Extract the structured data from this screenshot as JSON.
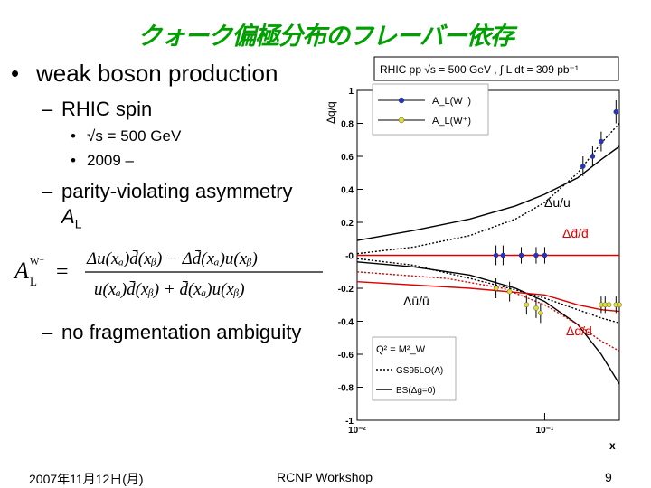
{
  "slide": {
    "title": "クォーク偏極分布のフレーバー依存",
    "bullet_main": "weak boson production",
    "sub1": "RHIC spin",
    "sub1_items": [
      "√s = 500 GeV",
      "2009 –"
    ],
    "sub2_line1": "parity-violating asymmetry",
    "sub2_line2": "A",
    "sub2_line2_sub": "L",
    "sub3": "no fragmentation ambiguity",
    "bullet_symbol": "•",
    "dash_symbol": "–"
  },
  "formula": {
    "lhs_A": "A",
    "lhs_sub": "L",
    "lhs_sup": "W⁺",
    "equals": "=",
    "numerator": "Δu(xₐ)d̄(xᵦ) − Δd̄(xₐ)u(xᵦ)",
    "denominator": "u(xₐ)d̄(xᵦ) + d̄(xₐ)u(xᵦ)"
  },
  "footer": {
    "date": "2007年11月12日(月)",
    "venue": "RCNP Workshop",
    "page": "9"
  },
  "chart_data": {
    "type": "line",
    "header": "RHIC pp √s = 500 GeV ,  ∫ L dt = 309 pb⁻¹",
    "ylabel": "Δq/q",
    "xlabel": "x",
    "x_scale": "log",
    "xlim": [
      0.01,
      0.25
    ],
    "ylim": [
      -1,
      1
    ],
    "y_ticks": [
      "1",
      "0.8",
      "0.6",
      "0.4",
      "0.2",
      "-0",
      "-0.2",
      "-0.4",
      "-0.6",
      "-0.8",
      "-1"
    ],
    "x_tick_labels": [
      {
        "x": 0.01,
        "label": "10⁻²"
      },
      {
        "x": 0.1,
        "label": "10⁻¹"
      }
    ],
    "legend_top": [
      {
        "label": "A_L(W⁻)",
        "color": "#2233cc"
      },
      {
        "label": "A_L(W⁺)",
        "color": "#dddd33"
      }
    ],
    "legend_bottom": {
      "q2_label": "Q² = M²_W",
      "entries": [
        {
          "label": "GS95LO(A)",
          "style": "dotted"
        },
        {
          "label": "BS(Δg=0)",
          "style": "solid"
        }
      ]
    },
    "curve_labels": [
      {
        "text": "Δu/u",
        "color": "#000000"
      },
      {
        "text": "Δd̄/d̄",
        "color": "#dd0000"
      },
      {
        "text": "Δū/ū",
        "color": "#000000"
      },
      {
        "text": "Δd/d",
        "color": "#dd0000"
      }
    ],
    "series": [
      {
        "id": "du_u_solid",
        "color": "#000000",
        "dash": "",
        "x": [
          0.01,
          0.02,
          0.04,
          0.07,
          0.1,
          0.15,
          0.2,
          0.25
        ],
        "y": [
          0.09,
          0.15,
          0.22,
          0.3,
          0.37,
          0.47,
          0.58,
          0.66
        ]
      },
      {
        "id": "du_u_dotted",
        "color": "#000000",
        "dash": "2,2",
        "x": [
          0.01,
          0.02,
          0.04,
          0.07,
          0.1,
          0.15,
          0.2,
          0.25
        ],
        "y": [
          0.01,
          0.05,
          0.12,
          0.22,
          0.32,
          0.5,
          0.68,
          0.8
        ]
      },
      {
        "id": "dd_solid",
        "color": "#000000",
        "dash": "",
        "x": [
          0.01,
          0.02,
          0.04,
          0.07,
          0.1,
          0.15,
          0.2,
          0.25
        ],
        "y": [
          -0.04,
          -0.07,
          -0.12,
          -0.2,
          -0.28,
          -0.42,
          -0.6,
          -0.78
        ]
      },
      {
        "id": "dd_dotted",
        "color": "#000000",
        "dash": "2,2",
        "x": [
          0.01,
          0.02,
          0.04,
          0.07,
          0.1,
          0.15,
          0.2,
          0.25
        ],
        "y": [
          -0.02,
          -0.06,
          -0.14,
          -0.21,
          -0.26,
          -0.33,
          -0.38,
          -0.41
        ]
      },
      {
        "id": "dbar_red_solid",
        "color": "#dd0000",
        "dash": "",
        "x": [
          0.01,
          0.05,
          0.1,
          0.25
        ],
        "y": [
          0.0,
          0.0,
          0.0,
          0.0
        ]
      },
      {
        "id": "ubar_red_solid",
        "color": "#dd0000",
        "dash": "",
        "x": [
          0.01,
          0.04,
          0.1,
          0.15,
          0.2,
          0.25
        ],
        "y": [
          -0.16,
          -0.2,
          -0.24,
          -0.3,
          -0.33,
          -0.34
        ]
      },
      {
        "id": "ubar_red_dotted",
        "color": "#dd0000",
        "dash": "2,2",
        "x": [
          0.01,
          0.03,
          0.06,
          0.1,
          0.15,
          0.2,
          0.25
        ],
        "y": [
          -0.1,
          -0.14,
          -0.2,
          -0.3,
          -0.42,
          -0.52,
          -0.58
        ]
      }
    ],
    "points_w_minus": {
      "color": "#2233cc",
      "x": [
        0.055,
        0.06,
        0.075,
        0.09,
        0.1,
        0.16,
        0.18,
        0.2,
        0.24
      ],
      "y": [
        0.0,
        0.0,
        0.0,
        0.0,
        0.0,
        0.54,
        0.6,
        0.69,
        0.87
      ],
      "err": [
        0.06,
        0.06,
        0.05,
        0.05,
        0.05,
        0.06,
        0.06,
        0.06,
        0.07
      ]
    },
    "points_w_plus": {
      "color": "#dddd33",
      "x": [
        0.055,
        0.065,
        0.08,
        0.09,
        0.095,
        0.2,
        0.21,
        0.22,
        0.24,
        0.25
      ],
      "y": [
        -0.2,
        -0.22,
        -0.3,
        -0.32,
        -0.35,
        -0.3,
        -0.3,
        -0.3,
        -0.3,
        -0.3
      ],
      "err": [
        0.06,
        0.06,
        0.06,
        0.06,
        0.06,
        0.05,
        0.05,
        0.05,
        0.05,
        0.05
      ]
    }
  }
}
